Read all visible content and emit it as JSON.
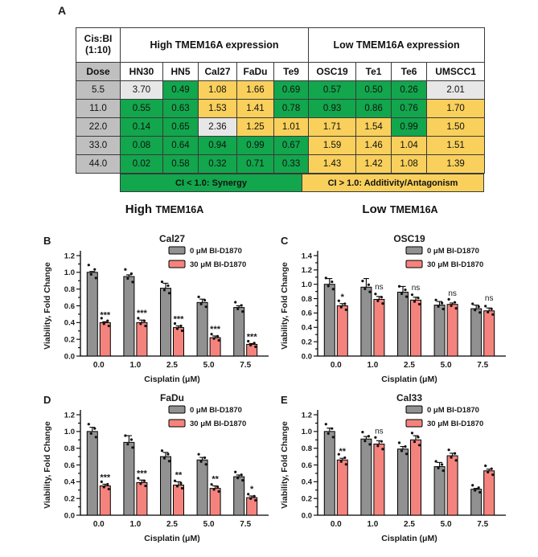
{
  "labels": {
    "a": "A"
  },
  "colors": {
    "green": "#12A64D",
    "yellow": "#F9D05C",
    "neutral": "#E7E7E7",
    "dose_gray": "#BFBFBF",
    "bar_gray": "#919191",
    "bar_red": "#F5837D",
    "border": "#3a3a3a"
  },
  "sections": {
    "high": {
      "prefix": "High",
      "gene": "TMEM16A"
    },
    "low": {
      "prefix": "Low",
      "gene": "TMEM16A"
    }
  },
  "chart_data": [
    {
      "type": "table",
      "panel": "A",
      "corner_label_line1": "Cis:BI",
      "corner_label_line2": "(1:10)",
      "group_headers": [
        "High TMEM16A expression",
        "Low TMEM16A expression"
      ],
      "dose_header": "Dose",
      "columns": [
        "HN30",
        "HN5",
        "Cal27",
        "FaDu",
        "Te9",
        "OSC19",
        "Te1",
        "Te6",
        "UMSCC1"
      ],
      "doses": [
        "5.5",
        "11.0",
        "22.0",
        "33.0",
        "44.0"
      ],
      "values": [
        [
          "3.70",
          "0.49",
          "1.08",
          "1.66",
          "0.69",
          "0.57",
          "0.50",
          "0.26",
          "2.01"
        ],
        [
          "0.55",
          "0.63",
          "1.53",
          "1.41",
          "0.78",
          "0.93",
          "0.86",
          "0.76",
          "1.70"
        ],
        [
          "0.14",
          "0.65",
          "2.36",
          "1.25",
          "1.01",
          "1.71",
          "1.54",
          "0.99",
          "1.50"
        ],
        [
          "0.08",
          "0.64",
          "0.94",
          "0.99",
          "0.67",
          "1.59",
          "1.46",
          "1.04",
          "1.51"
        ],
        [
          "0.02",
          "0.58",
          "0.32",
          "0.71",
          "0.33",
          "1.43",
          "1.42",
          "1.08",
          "1.39"
        ]
      ],
      "cell_colors": [
        [
          "neutral",
          "green",
          "yellow",
          "yellow",
          "green",
          "green",
          "green",
          "green",
          "neutral"
        ],
        [
          "green",
          "green",
          "yellow",
          "yellow",
          "green",
          "green",
          "green",
          "green",
          "yellow"
        ],
        [
          "green",
          "green",
          "neutral",
          "yellow",
          "yellow",
          "yellow",
          "yellow",
          "green",
          "yellow"
        ],
        [
          "green",
          "green",
          "green",
          "green",
          "green",
          "yellow",
          "yellow",
          "yellow",
          "yellow"
        ],
        [
          "green",
          "green",
          "green",
          "green",
          "green",
          "yellow",
          "yellow",
          "yellow",
          "yellow"
        ]
      ],
      "legend": [
        {
          "label": "CI < 1.0: Synergy",
          "color_key": "green"
        },
        {
          "label": "CI > 1.0: Additivity/Antagonism",
          "color_key": "yellow"
        }
      ]
    },
    {
      "type": "bar",
      "panel": "B",
      "title": "Cal27",
      "section": "High TMEM16A",
      "categories": [
        "0.0",
        "1.0",
        "2.5",
        "5.0",
        "7.5"
      ],
      "xlabel": "Cisplatin (μM)",
      "ylabel": "Viability, Fold Change",
      "ylim": [
        0,
        1.2
      ],
      "ytick_step": 0.2,
      "legend_position": "top-right",
      "series": [
        {
          "name": "0 μM BI-D1870",
          "color_key": "bar_gray",
          "values": [
            1.0,
            0.95,
            0.81,
            0.64,
            0.58
          ],
          "errors": [
            0.01,
            0.02,
            0.06,
            0.04,
            0.02
          ]
        },
        {
          "name": "30 μM BI-D1870",
          "color_key": "bar_red",
          "values": [
            0.4,
            0.4,
            0.34,
            0.22,
            0.14
          ],
          "errors": [
            0.01,
            0.03,
            0.02,
            0.02,
            0.01
          ]
        }
      ],
      "significance": [
        "***",
        "***",
        "***",
        "***",
        "***"
      ]
    },
    {
      "type": "bar",
      "panel": "C",
      "title": "OSC19",
      "section": "Low TMEM16A",
      "categories": [
        "0.0",
        "1.0",
        "2.5",
        "5.0",
        "7.5"
      ],
      "xlabel": "Cisplatin (μM)",
      "ylabel": "Viability, Fold Change",
      "ylim": [
        0,
        1.4
      ],
      "ytick_step": 0.2,
      "legend_position": "top-right",
      "series": [
        {
          "name": "0 μM BI-D1870",
          "color_key": "bar_gray",
          "values": [
            1.0,
            0.96,
            0.89,
            0.71,
            0.66
          ],
          "errors": [
            0.08,
            0.12,
            0.08,
            0.05,
            0.05
          ]
        },
        {
          "name": "30 μM BI-D1870",
          "color_key": "bar_red",
          "values": [
            0.7,
            0.79,
            0.78,
            0.72,
            0.63
          ],
          "errors": [
            0.03,
            0.04,
            0.04,
            0.02,
            0.04
          ]
        }
      ],
      "significance": [
        "*",
        "ns",
        "ns",
        "ns",
        "ns"
      ]
    },
    {
      "type": "bar",
      "panel": "D",
      "title": "FaDu",
      "section": "High TMEM16A",
      "categories": [
        "0.0",
        "1.0",
        "2.5",
        "5.0",
        "7.5"
      ],
      "xlabel": "Cisplatin (μM)",
      "ylabel": "Viability, Fold Change",
      "ylim": [
        0,
        1.2
      ],
      "ytick_step": 0.2,
      "legend_position": "top-right",
      "series": [
        {
          "name": "0 μM BI-D1870",
          "color_key": "bar_gray",
          "values": [
            1.0,
            0.87,
            0.7,
            0.66,
            0.46
          ],
          "errors": [
            0.05,
            0.08,
            0.05,
            0.03,
            0.02
          ]
        },
        {
          "name": "30 μM BI-D1870",
          "color_key": "bar_red",
          "values": [
            0.35,
            0.39,
            0.36,
            0.32,
            0.21
          ],
          "errors": [
            0.02,
            0.03,
            0.04,
            0.03,
            0.02
          ]
        }
      ],
      "significance": [
        "***",
        "***",
        "**",
        "**",
        "*"
      ]
    },
    {
      "type": "bar",
      "panel": "E",
      "title": "Cal33",
      "section": "Low TMEM16A",
      "categories": [
        "0.0",
        "1.0",
        "2.5",
        "5.0",
        "7.5"
      ],
      "xlabel": "Cisplatin (μM)",
      "ylabel": "Viability, Fold Change",
      "ylim": [
        0,
        1.2
      ],
      "ytick_step": 0.2,
      "legend_position": "top-right",
      "series": [
        {
          "name": "0 μM BI-D1870",
          "color_key": "bar_gray",
          "values": [
            1.0,
            0.91,
            0.79,
            0.58,
            0.31
          ],
          "errors": [
            0.04,
            0.03,
            0.03,
            0.05,
            0.01
          ]
        },
        {
          "name": "30 μM BI-D1870",
          "color_key": "bar_red",
          "values": [
            0.66,
            0.85,
            0.9,
            0.71,
            0.53
          ],
          "errors": [
            0.02,
            0.04,
            0.05,
            0.03,
            0.02
          ]
        }
      ],
      "significance": [
        "**",
        "ns",
        "",
        "",
        ""
      ]
    }
  ]
}
